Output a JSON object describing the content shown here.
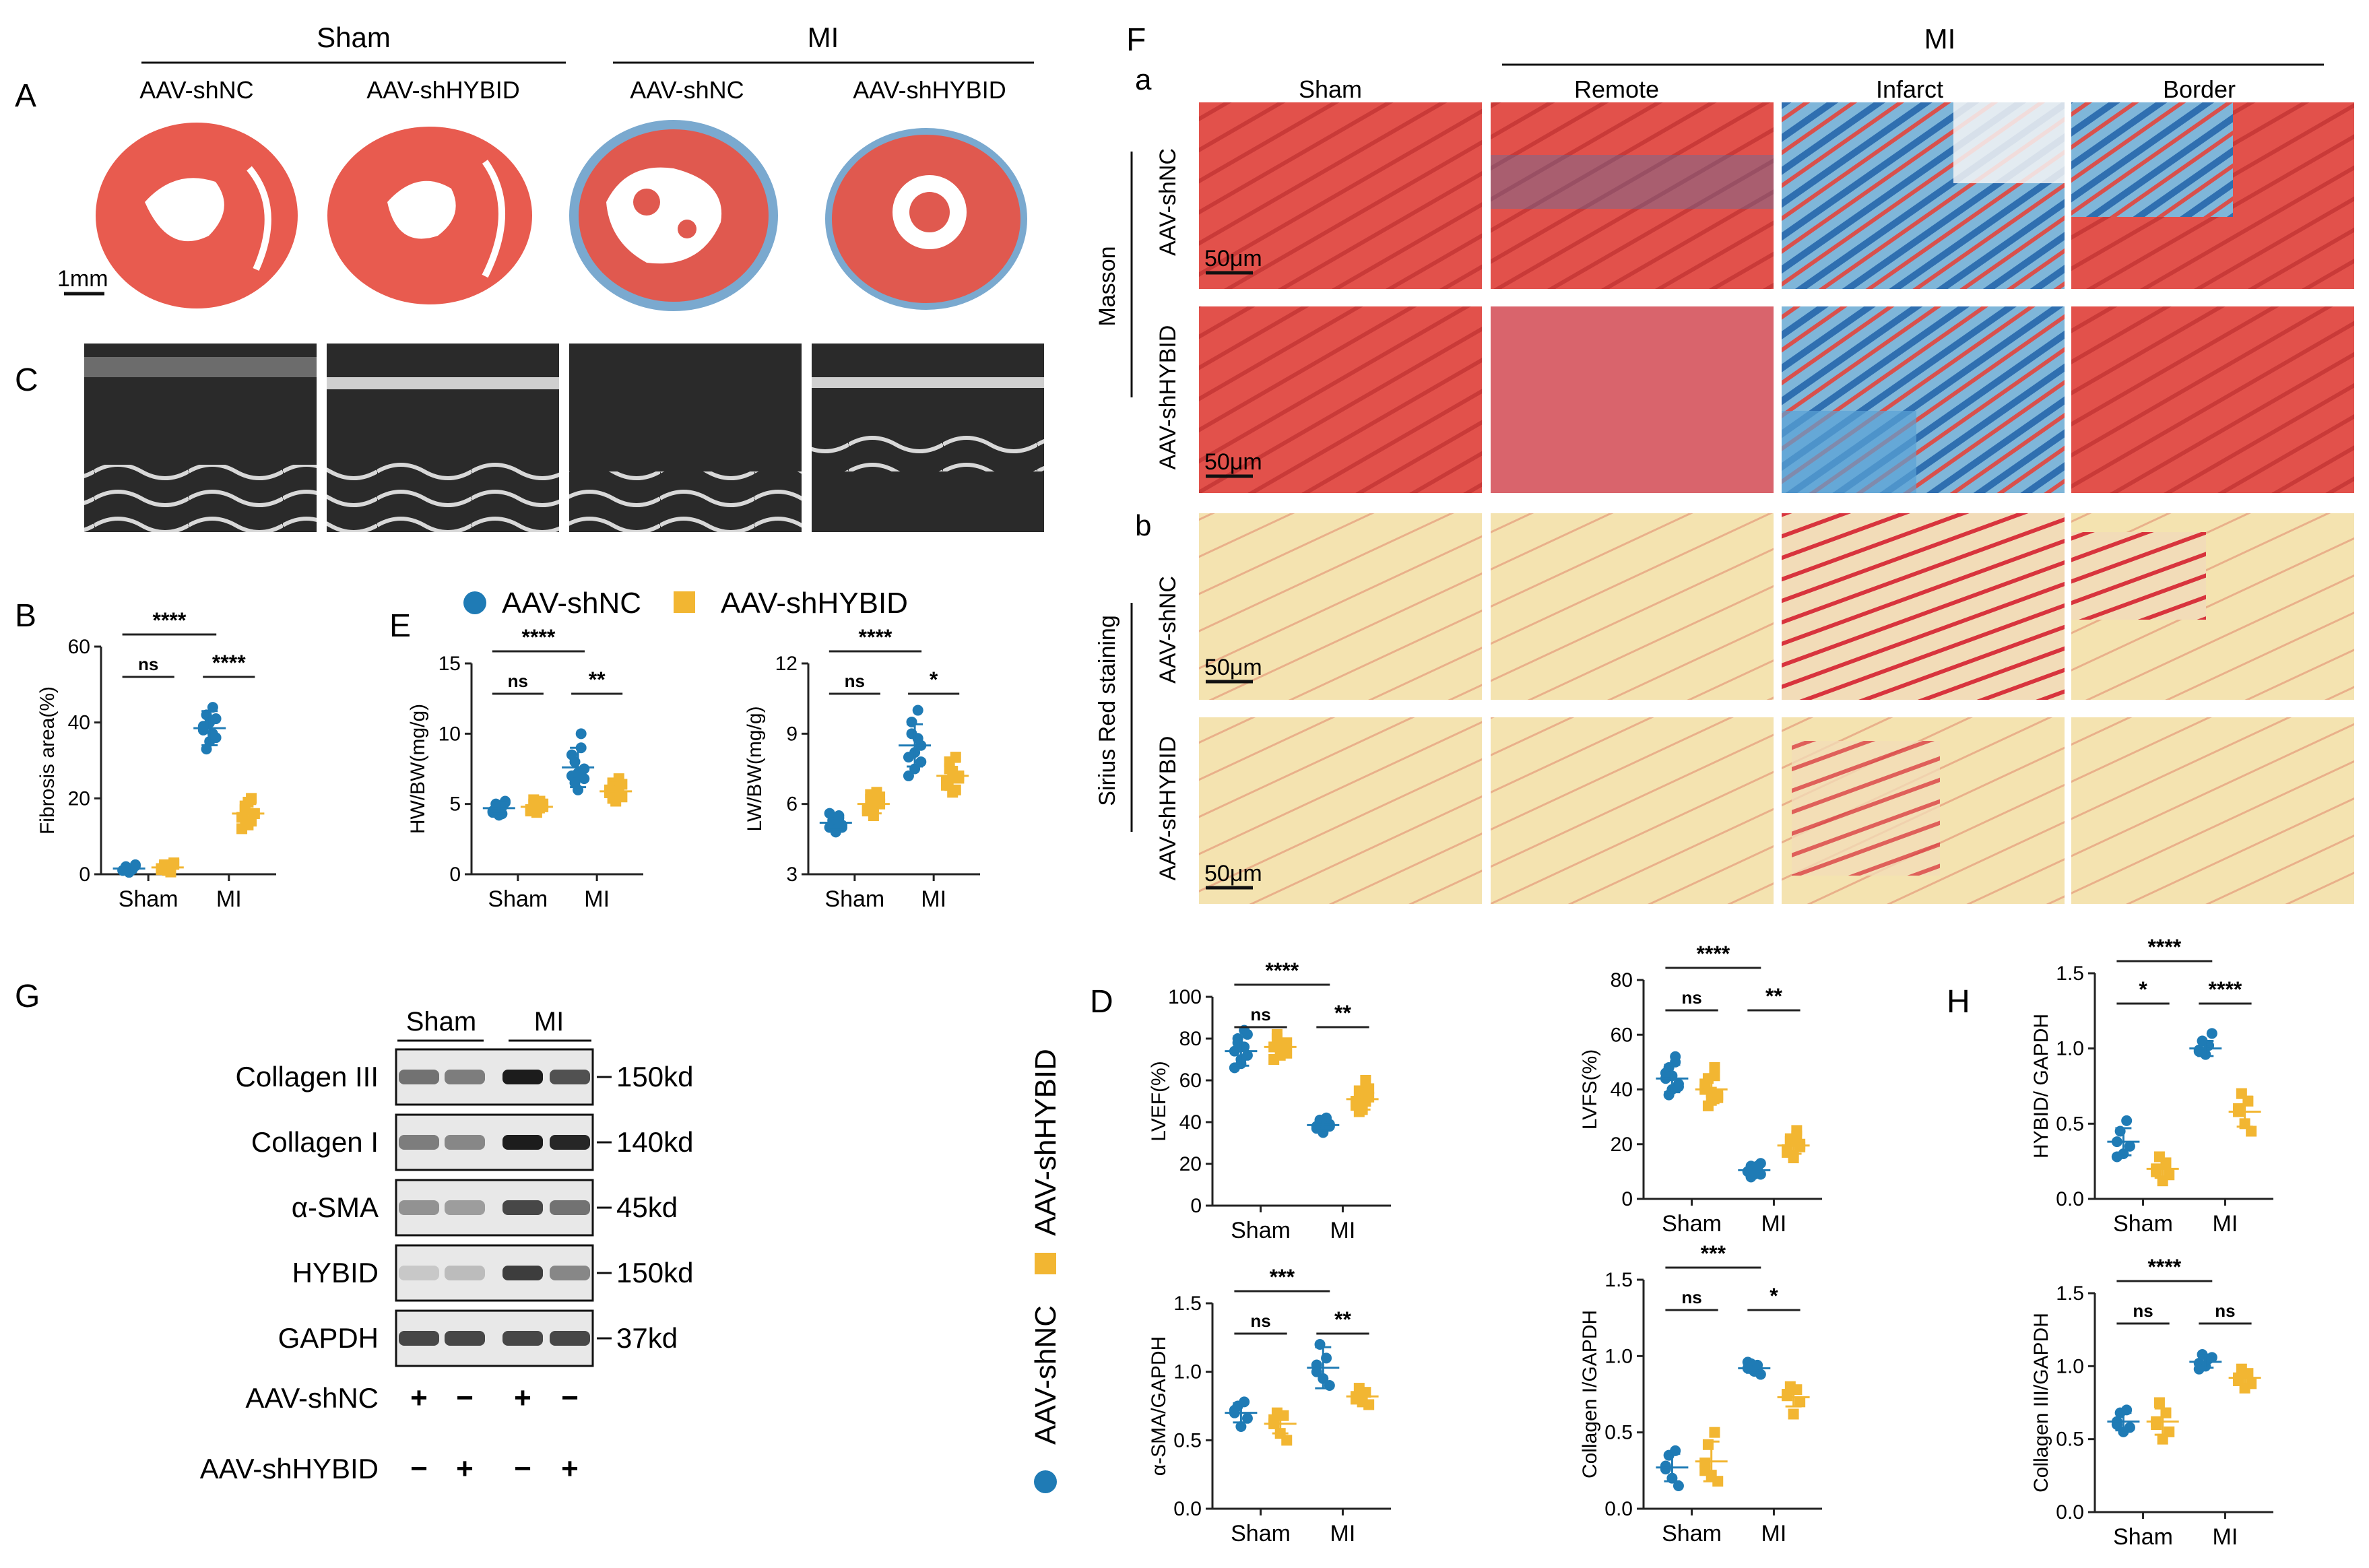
{
  "colors": {
    "shNC": "#1f7bb5",
    "shHYBID": "#f2b632",
    "axis": "#222222",
    "bg": "#ffffff"
  },
  "labels": {
    "panel_letters": [
      "A",
      "B",
      "C",
      "D",
      "E",
      "F",
      "G",
      "H"
    ],
    "sub_a": "a",
    "sub_b": "b",
    "sham": "Sham",
    "mi": "MI",
    "shNC": "AAV-shNC",
    "shHYBID": "AAV-shHYBID",
    "scale_1mm": "1mm",
    "scale_50um": "50μm",
    "masson": "Masson",
    "sirius": "Sirius Red staining",
    "regions": [
      "Sham",
      "Remote",
      "Infarct",
      "Border"
    ],
    "vertical_legend": "AAV-shNC  AAV-shHYBID"
  },
  "western_blot": {
    "groups": [
      "Sham",
      "MI"
    ],
    "proteins": [
      {
        "name": "Collagen III",
        "size": "150kd"
      },
      {
        "name": "Collagen I",
        "size": "140kd"
      },
      {
        "name": "α-SMA",
        "size": "45kd"
      },
      {
        "name": "HYBID",
        "size": "150kd"
      },
      {
        "name": "GAPDH",
        "size": "37kd"
      }
    ],
    "rows": [
      {
        "label": "AAV-shNC",
        "signs": [
          "+",
          "−",
          "+",
          "−"
        ]
      },
      {
        "label": "AAV-shHYBID",
        "signs": [
          "−",
          "+",
          "−",
          "+"
        ]
      }
    ]
  },
  "chart_data": [
    {
      "id": "B",
      "type": "scatter",
      "ylabel": "Fibrosis area(%)",
      "ylim": [
        0,
        60
      ],
      "yticks": [
        0,
        20,
        40,
        60
      ],
      "categories": [
        "Sham",
        "MI"
      ],
      "series": [
        {
          "name": "AAV-shNC",
          "values": [
            [
              1,
              2,
              0.5,
              1.5,
              2.5,
              1,
              2,
              0.8,
              1.2,
              2.2
            ],
            [
              38,
              42,
              35,
              44,
              36,
              39,
              33,
              40,
              37,
              41
            ]
          ],
          "means": [
            1.5,
            38.5
          ],
          "sd": [
            0.8,
            4.5
          ]
        },
        {
          "name": "AAV-shHYBID",
          "values": [
            [
              1.5,
              2.5,
              1,
              2,
              3,
              1.2,
              2.2,
              1.8,
              0.6,
              2.6
            ],
            [
              15,
              18,
              13,
              20,
              16,
              12,
              17,
              19,
              14,
              16
            ]
          ],
          "means": [
            1.8,
            16
          ],
          "sd": [
            0.8,
            2.5
          ]
        }
      ],
      "brackets": [
        {
          "from": [
            0,
            0
          ],
          "to": [
            1,
            0
          ],
          "text": "****"
        },
        {
          "from": [
            0,
            0
          ],
          "to": [
            0,
            1
          ],
          "text": "ns"
        },
        {
          "from": [
            1,
            0
          ],
          "to": [
            1,
            1
          ],
          "text": "****"
        }
      ]
    },
    {
      "id": "E1",
      "type": "scatter",
      "ylabel": "HW/BW(mg/g)",
      "ylim": [
        0,
        15
      ],
      "yticks": [
        0,
        5,
        10,
        15
      ],
      "categories": [
        "Sham",
        "MI"
      ],
      "series": [
        {
          "name": "AAV-shNC",
          "values": [
            [
              4.5,
              5,
              4.2,
              4.8,
              5.2,
              4.4,
              4.6,
              4.9,
              4.3,
              5.1
            ],
            [
              7,
              8,
              6,
              10,
              7.5,
              8.5,
              6.5,
              7.2,
              9,
              6.8
            ]
          ],
          "means": [
            4.7,
            7.6
          ],
          "sd": [
            0.4,
            1.4
          ]
        },
        {
          "name": "AAV-shHYBID",
          "values": [
            [
              4.6,
              5,
              4.4,
              5.2,
              4.8,
              4.5,
              5.3,
              4.7,
              4.9,
              5
            ],
            [
              5.8,
              6.5,
              5.2,
              6.8,
              5.5,
              6,
              5.4,
              6.2,
              5.9,
              6.4
            ]
          ],
          "means": [
            4.8,
            5.9
          ],
          "sd": [
            0.4,
            0.6
          ]
        }
      ],
      "brackets": [
        {
          "from": [
            0,
            0
          ],
          "to": [
            1,
            0
          ],
          "text": "****"
        },
        {
          "from": [
            0,
            0
          ],
          "to": [
            0,
            1
          ],
          "text": "ns"
        },
        {
          "from": [
            1,
            0
          ],
          "to": [
            1,
            1
          ],
          "text": "**"
        }
      ]
    },
    {
      "id": "E2",
      "type": "scatter",
      "ylabel": "LW/BW(mg/g)",
      "ylim": [
        3,
        12
      ],
      "yticks": [
        3,
        6,
        9,
        12
      ],
      "categories": [
        "Sham",
        "MI"
      ],
      "series": [
        {
          "name": "AAV-shNC",
          "values": [
            [
              5,
              5.3,
              4.8,
              5.5,
              5.1,
              5.6,
              5.2,
              4.9,
              5.4,
              5
            ],
            [
              8,
              9,
              7.5,
              10,
              8.5,
              7.2,
              9.5,
              8.2,
              8.8,
              7.8
            ]
          ],
          "means": [
            5.2,
            8.5
          ],
          "sd": [
            0.3,
            0.9
          ]
        },
        {
          "name": "AAV-shHYBID",
          "values": [
            [
              5.8,
              6.2,
              5.5,
              6.5,
              6,
              5.7,
              6.4,
              5.9,
              6.1,
              6.3
            ],
            [
              7,
              7.5,
              6.5,
              8,
              7.2,
              6.8,
              7.8,
              7.4,
              6.6,
              7.1
            ]
          ],
          "means": [
            6,
            7.2
          ],
          "sd": [
            0.4,
            0.6
          ]
        }
      ],
      "brackets": [
        {
          "from": [
            0,
            0
          ],
          "to": [
            1,
            0
          ],
          "text": "****"
        },
        {
          "from": [
            0,
            0
          ],
          "to": [
            0,
            1
          ],
          "text": "ns"
        },
        {
          "from": [
            1,
            0
          ],
          "to": [
            1,
            1
          ],
          "text": "*"
        }
      ]
    },
    {
      "id": "D1",
      "type": "scatter",
      "ylabel": "LVEF(%)",
      "ylim": [
        0,
        100
      ],
      "yticks": [
        0,
        20,
        40,
        60,
        80,
        100
      ],
      "categories": [
        "Sham",
        "MI"
      ],
      "series": [
        {
          "name": "AAV-shNC",
          "values": [
            [
              74,
              80,
              68,
              84,
              72,
              66,
              78,
              70,
              76,
              82
            ],
            [
              38,
              40,
              36,
              42,
              39,
              37,
              41,
              35,
              40,
              38
            ]
          ],
          "means": [
            74,
            38.6
          ],
          "sd": [
            7,
            2.5
          ]
        },
        {
          "name": "AAV-shHYBID",
          "values": [
            [
              76,
              80,
              72,
              74,
              78,
              70,
              82,
              75,
              77,
              73
            ],
            [
              50,
              55,
              46,
              60,
              52,
              48,
              45,
              54,
              50,
              56
            ]
          ],
          "means": [
            76,
            51
          ],
          "sd": [
            4,
            5
          ]
        }
      ],
      "brackets": [
        {
          "from": [
            0,
            0
          ],
          "to": [
            1,
            0
          ],
          "text": "****"
        },
        {
          "from": [
            0,
            0
          ],
          "to": [
            0,
            1
          ],
          "text": "ns"
        },
        {
          "from": [
            1,
            0
          ],
          "to": [
            1,
            1
          ],
          "text": "**"
        }
      ]
    },
    {
      "id": "D2",
      "type": "scatter",
      "ylabel": "LVFS(%)",
      "ylim": [
        0,
        80
      ],
      "yticks": [
        0,
        20,
        40,
        60,
        80
      ],
      "categories": [
        "Sham",
        "MI"
      ],
      "series": [
        {
          "name": "AAV-shNC",
          "values": [
            [
              44,
              48,
              40,
              52,
              42,
              46,
              38,
              45,
              50,
              41
            ],
            [
              10,
              12,
              9,
              11,
              13,
              10,
              8,
              11,
              12,
              9
            ]
          ],
          "means": [
            44,
            10.5
          ],
          "sd": [
            5,
            1.5
          ]
        },
        {
          "name": "AAV-shHYBID",
          "values": [
            [
              40,
              44,
              36,
              48,
              38,
              42,
              34,
              39,
              45,
              37
            ],
            [
              18,
              22,
              15,
              25,
              19,
              17,
              21,
              16,
              23,
              20
            ]
          ],
          "means": [
            40,
            19.5
          ],
          "sd": [
            5,
            3
          ]
        }
      ],
      "brackets": [
        {
          "from": [
            0,
            0
          ],
          "to": [
            1,
            0
          ],
          "text": "****"
        },
        {
          "from": [
            0,
            0
          ],
          "to": [
            0,
            1
          ],
          "text": "ns"
        },
        {
          "from": [
            1,
            0
          ],
          "to": [
            1,
            1
          ],
          "text": "**"
        }
      ]
    },
    {
      "id": "H1",
      "type": "scatter",
      "ylabel": "HYBID/ GAPDH",
      "ylim": [
        0,
        1.5
      ],
      "yticks": [
        0.0,
        0.5,
        1.0,
        1.5
      ],
      "categories": [
        "Sham",
        "MI"
      ],
      "series": [
        {
          "name": "AAV-shNC",
          "values": [
            [
              0.38,
              0.45,
              0.3,
              0.52,
              0.35,
              0.28
            ],
            [
              0.98,
              1.05,
              0.96,
              1.02,
              1.1,
              0.99
            ]
          ],
          "means": [
            0.38,
            1.0
          ],
          "sd": [
            0.09,
            0.05
          ]
        },
        {
          "name": "AAV-shHYBID",
          "values": [
            [
              0.2,
              0.28,
              0.12,
              0.24,
              0.16,
              0.18
            ],
            [
              0.58,
              0.7,
              0.5,
              0.65,
              0.45,
              0.6
            ]
          ],
          "means": [
            0.2,
            0.58
          ],
          "sd": [
            0.06,
            0.1
          ]
        }
      ],
      "brackets": [
        {
          "from": [
            0,
            0
          ],
          "to": [
            1,
            0
          ],
          "text": "****"
        },
        {
          "from": [
            0,
            0
          ],
          "to": [
            0,
            1
          ],
          "text": "*"
        },
        {
          "from": [
            1,
            0
          ],
          "to": [
            1,
            1
          ],
          "text": "****"
        }
      ]
    },
    {
      "id": "D3",
      "type": "scatter",
      "ylabel": "α-SMA/GAPDH",
      "ylim": [
        0,
        1.5
      ],
      "yticks": [
        0.0,
        0.5,
        1.0,
        1.5
      ],
      "categories": [
        "Sham",
        "MI"
      ],
      "series": [
        {
          "name": "AAV-shNC",
          "values": [
            [
              0.7,
              0.75,
              0.6,
              0.78,
              0.66,
              0.72
            ],
            [
              1.05,
              1.2,
              0.95,
              1.1,
              0.9,
              1.0
            ]
          ],
          "means": [
            0.7,
            1.03
          ],
          "sd": [
            0.07,
            0.15
          ]
        },
        {
          "name": "AAV-shHYBID",
          "values": [
            [
              0.62,
              0.7,
              0.55,
              0.68,
              0.5,
              0.65
            ],
            [
              0.8,
              0.88,
              0.78,
              0.85,
              0.76,
              0.82
            ]
          ],
          "means": [
            0.62,
            0.82
          ],
          "sd": [
            0.07,
            0.05
          ]
        }
      ],
      "brackets": [
        {
          "from": [
            0,
            0
          ],
          "to": [
            1,
            0
          ],
          "text": "***"
        },
        {
          "from": [
            0,
            0
          ],
          "to": [
            0,
            1
          ],
          "text": "ns"
        },
        {
          "from": [
            1,
            0
          ],
          "to": [
            1,
            1
          ],
          "text": "**"
        }
      ]
    },
    {
      "id": "D4",
      "type": "scatter",
      "ylabel": "Collagen I/GAPDH",
      "ylim": [
        0,
        1.5
      ],
      "yticks": [
        0.0,
        0.5,
        1.0,
        1.5
      ],
      "categories": [
        "Sham",
        "MI"
      ],
      "series": [
        {
          "name": "AAV-shNC",
          "values": [
            [
              0.28,
              0.35,
              0.2,
              0.38,
              0.15,
              0.26
            ],
            [
              0.92,
              0.95,
              0.9,
              0.94,
              0.88,
              0.96
            ]
          ],
          "means": [
            0.27,
            0.92
          ],
          "sd": [
            0.09,
            0.03
          ]
        },
        {
          "name": "AAV-shHYBID",
          "values": [
            [
              0.3,
              0.42,
              0.22,
              0.5,
              0.18,
              0.25
            ],
            [
              0.75,
              0.8,
              0.62,
              0.78,
              0.7,
              0.74
            ]
          ],
          "means": [
            0.31,
            0.73
          ],
          "sd": [
            0.13,
            0.06
          ]
        }
      ],
      "brackets": [
        {
          "from": [
            0,
            0
          ],
          "to": [
            1,
            0
          ],
          "text": "***"
        },
        {
          "from": [
            0,
            0
          ],
          "to": [
            0,
            1
          ],
          "text": "ns"
        },
        {
          "from": [
            1,
            0
          ],
          "to": [
            1,
            1
          ],
          "text": "*"
        }
      ]
    },
    {
      "id": "H2",
      "type": "scatter",
      "ylabel": "Collagen III/GAPDH",
      "ylim": [
        0,
        1.5
      ],
      "yticks": [
        0.0,
        0.5,
        1.0,
        1.5
      ],
      "categories": [
        "Sham",
        "MI"
      ],
      "series": [
        {
          "name": "AAV-shNC",
          "values": [
            [
              0.6,
              0.68,
              0.55,
              0.7,
              0.58,
              0.62
            ],
            [
              1.02,
              1.08,
              1.0,
              1.05,
              1.06,
              0.98
            ]
          ],
          "means": [
            0.62,
            1.03
          ],
          "sd": [
            0.06,
            0.04
          ]
        },
        {
          "name": "AAV-shHYBID",
          "values": [
            [
              0.6,
              0.75,
              0.5,
              0.68,
              0.55,
              0.62
            ],
            [
              0.9,
              0.98,
              0.85,
              0.95,
              0.88,
              0.92
            ]
          ],
          "means": [
            0.62,
            0.92
          ],
          "sd": [
            0.09,
            0.05
          ]
        }
      ],
      "brackets": [
        {
          "from": [
            0,
            0
          ],
          "to": [
            1,
            0
          ],
          "text": "****"
        },
        {
          "from": [
            0,
            0
          ],
          "to": [
            0,
            1
          ],
          "text": "ns"
        },
        {
          "from": [
            1,
            0
          ],
          "to": [
            1,
            1
          ],
          "text": "ns"
        }
      ]
    }
  ]
}
